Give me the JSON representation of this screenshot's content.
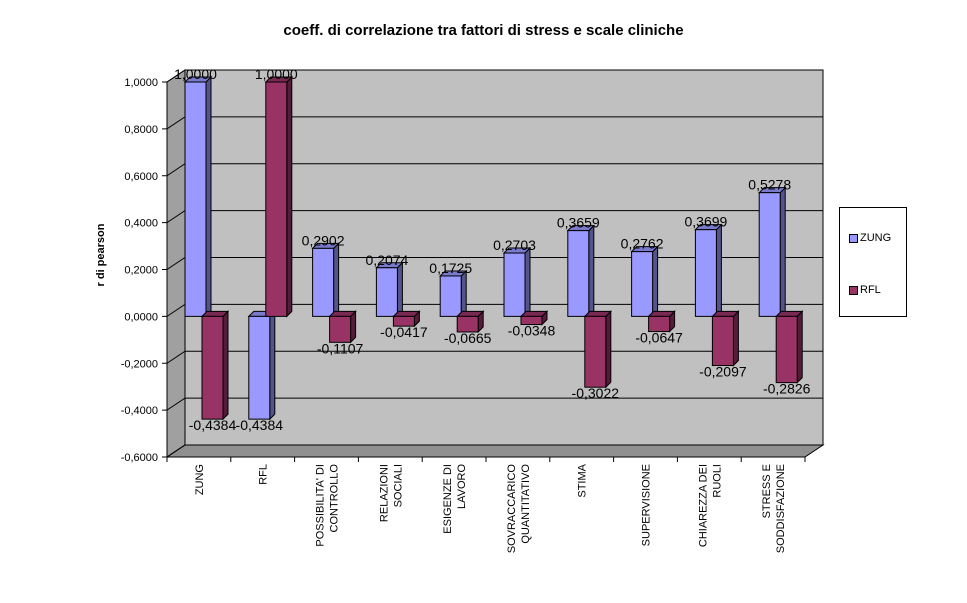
{
  "chart_data": {
    "type": "bar",
    "title": "coeff. di correlazione tra fattori di stress e scale cliniche",
    "xlabel": "",
    "ylabel": "r di pearson",
    "ylim": [
      -0.6,
      1.0
    ],
    "y_ticks": [
      "1,0000",
      "0,8000",
      "0,6000",
      "0,4000",
      "0,2000",
      "0,0000",
      "-0,2000",
      "-0,4000",
      "-0,6000"
    ],
    "y_tick_values": [
      1.0,
      0.8,
      0.6,
      0.4,
      0.2,
      0.0,
      -0.2,
      -0.4,
      -0.6
    ],
    "categories": [
      [
        "ZUNG"
      ],
      [
        "RFL"
      ],
      [
        "POSSIBILITA' DI",
        "CONTROLLO"
      ],
      [
        "RELAZIONI",
        "SOCIALI"
      ],
      [
        "ESIGENZE DI",
        "LAVORO"
      ],
      [
        "SOVRACCARICO",
        "QUANTITATIVO"
      ],
      [
        "STIMA"
      ],
      [
        "SUPERVISIONE"
      ],
      [
        "CHIAREZZA DEI",
        "RUOLI"
      ],
      [
        "STRESS E",
        "SODDISFAZIONE"
      ]
    ],
    "series": [
      {
        "name": "ZUNG",
        "color": "#9999ff",
        "values": [
          1.0,
          -0.4384,
          0.2902,
          0.2074,
          0.1725,
          0.2703,
          0.3659,
          0.2762,
          0.3699,
          0.5278
        ],
        "labels": [
          "1,0000",
          "-0,4384",
          "0,2902",
          "0,2074",
          "0,1725",
          "0,2703",
          "0,3659",
          "0,2762",
          "0,3699",
          "0,5278"
        ]
      },
      {
        "name": "RFL",
        "color": "#993366",
        "values": [
          -0.4384,
          1.0,
          -0.1107,
          -0.0417,
          -0.0665,
          -0.0348,
          -0.3022,
          -0.0647,
          -0.2097,
          -0.2826
        ],
        "labels": [
          "-0,4384",
          "1,0000",
          "-0,1107",
          "-0,0417",
          "-0,0665",
          "-0,0348",
          "-0,3022",
          "-0,0647",
          "-0,2097",
          "-0,2826"
        ]
      }
    ],
    "grid": true,
    "legend_position": "right",
    "plot_background": "#c0c0c0"
  }
}
